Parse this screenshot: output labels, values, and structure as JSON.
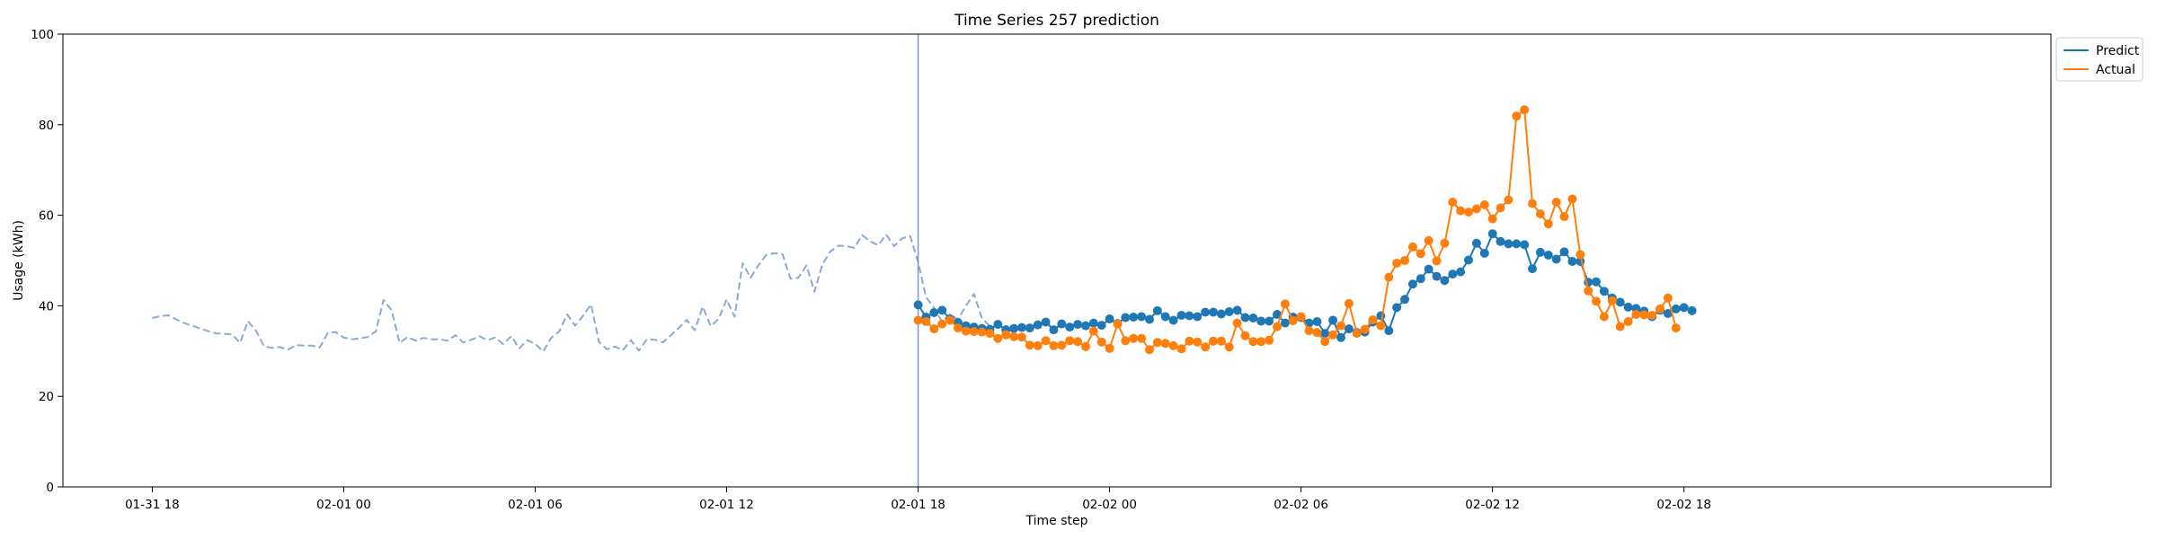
{
  "chart_data": {
    "type": "line",
    "title": "Time Series 257 prediction",
    "xlabel": "Time step",
    "ylabel": "Usage (kWh)",
    "ylim": [
      0,
      100
    ],
    "yticks": [
      0,
      20,
      40,
      60,
      80,
      100
    ],
    "xlim": [
      "2024-01-31 15:12",
      "2024-02-03 05:30"
    ],
    "xticks": [
      {
        "t": "2024-01-31 18:00",
        "label": "01-31 18"
      },
      {
        "t": "2024-02-01 00:00",
        "label": "02-01 00"
      },
      {
        "t": "2024-02-01 06:00",
        "label": "02-01 06"
      },
      {
        "t": "2024-02-01 12:00",
        "label": "02-01 12"
      },
      {
        "t": "2024-02-01 18:00",
        "label": "02-01 18"
      },
      {
        "t": "2024-02-02 00:00",
        "label": "02-02 00"
      },
      {
        "t": "2024-02-02 06:00",
        "label": "02-02 06"
      },
      {
        "t": "2024-02-02 12:00",
        "label": "02-02 12"
      },
      {
        "t": "2024-02-02 18:00",
        "label": "02-02 18"
      }
    ],
    "grid": false,
    "legend": "upper right, outside plot",
    "forecast_start": "2024-02-01 18:00",
    "series": [
      {
        "name": "",
        "style": "dashed",
        "color": "#8fa8d0",
        "start": "2024-01-31 18:00",
        "step_minutes": 15,
        "values": [
          37.3,
          37.7,
          37.9,
          37.0,
          36.2,
          35.6,
          35.0,
          34.4,
          33.9,
          33.8,
          33.7,
          31.8,
          36.6,
          34.5,
          31.1,
          30.7,
          30.9,
          30.3,
          31.3,
          31.2,
          31.2,
          30.8,
          34.0,
          34.2,
          33.0,
          32.6,
          32.8,
          33.1,
          34.3,
          41.3,
          39.0,
          31.8,
          33.1,
          32.3,
          32.9,
          32.6,
          32.6,
          32.3,
          33.5,
          31.9,
          32.5,
          33.3,
          32.4,
          33.0,
          31.5,
          33.3,
          30.6,
          32.4,
          31.6,
          29.9,
          32.9,
          34.3,
          38.1,
          35.6,
          37.8,
          40.3,
          32.0,
          30.4,
          31.0,
          30.2,
          32.4,
          30.1,
          32.6,
          32.5,
          31.9,
          33.5,
          35.1,
          36.9,
          34.6,
          39.8,
          35.5,
          37.1,
          41.4,
          37.6,
          49.4,
          46.2,
          49.0,
          51.3,
          51.6,
          51.4,
          46.0,
          46.2,
          48.9,
          43.1,
          49.1,
          52.0,
          53.3,
          53.2,
          52.8,
          55.6,
          54.2,
          53.4,
          55.7,
          53.2,
          54.9,
          55.4,
          49.6,
          41.9,
          39.5,
          36.5,
          38.1,
          37.0,
          40.0,
          42.6,
          37.2,
          35.5
        ]
      },
      {
        "name": "Predict",
        "style": "solid-markers",
        "color": "#1f77b4",
        "start": "2024-02-01 18:00",
        "step_minutes": 15,
        "values": [
          40.2,
          37.5,
          38.5,
          39.0,
          37.1,
          36.3,
          35.6,
          35.3,
          35.0,
          34.8,
          35.9,
          34.7,
          35.0,
          35.2,
          35.1,
          35.8,
          36.4,
          34.7,
          36.0,
          35.3,
          35.9,
          35.6,
          36.2,
          35.7,
          37.1,
          36.1,
          37.4,
          37.5,
          37.6,
          37.0,
          38.9,
          37.6,
          36.8,
          37.9,
          37.8,
          37.6,
          38.6,
          38.6,
          38.2,
          38.7,
          39.0,
          37.4,
          37.3,
          36.6,
          36.6,
          38.1,
          36.2,
          37.5,
          37.4,
          36.2,
          36.5,
          33.9,
          36.8,
          33.0,
          34.9,
          34.1,
          34.2,
          36.4,
          37.8,
          34.5,
          39.6,
          41.4,
          44.8,
          46.0,
          48.1,
          46.5,
          45.6,
          47.0,
          47.5,
          50.1,
          53.8,
          51.6,
          55.9,
          54.2,
          53.7,
          53.7,
          53.5,
          48.2,
          51.8,
          51.2,
          50.3,
          51.9,
          49.8,
          49.8,
          45.2,
          45.3,
          43.2,
          41.7,
          40.8,
          39.7,
          39.4,
          38.8,
          37.6,
          39.0,
          38.3,
          39.3,
          39.6,
          38.9
        ]
      },
      {
        "name": "Actual",
        "style": "solid-markers",
        "color": "#ff7f0e",
        "start": "2024-02-01 18:00",
        "step_minutes": 15,
        "values": [
          36.8,
          36.5,
          34.9,
          36.0,
          36.8,
          35.1,
          34.4,
          34.3,
          34.2,
          33.9,
          32.8,
          33.6,
          33.2,
          33.1,
          31.3,
          31.2,
          32.3,
          31.2,
          31.3,
          32.3,
          32.1,
          31.0,
          34.4,
          32.0,
          30.6,
          36.0,
          32.3,
          32.8,
          32.8,
          30.3,
          31.9,
          31.7,
          31.2,
          30.5,
          32.2,
          32.0,
          30.9,
          32.2,
          32.2,
          30.9,
          36.2,
          33.4,
          32.1,
          32.1,
          32.4,
          35.4,
          40.4,
          36.7,
          37.6,
          34.5,
          34.1,
          32.1,
          33.6,
          35.6,
          40.5,
          33.9,
          34.8,
          36.9,
          35.6,
          46.3,
          49.4,
          50.0,
          53.0,
          51.5,
          54.4,
          49.9,
          53.8,
          62.9,
          61.0,
          60.7,
          61.4,
          62.3,
          59.2,
          61.6,
          63.4,
          81.9,
          83.3,
          62.6,
          60.3,
          58.1,
          62.9,
          59.7,
          63.6,
          51.3,
          43.3,
          41.0,
          37.6,
          41.1,
          35.4,
          36.5,
          38.1,
          38.0,
          37.9,
          39.3,
          41.7,
          35.1
        ]
      }
    ]
  }
}
